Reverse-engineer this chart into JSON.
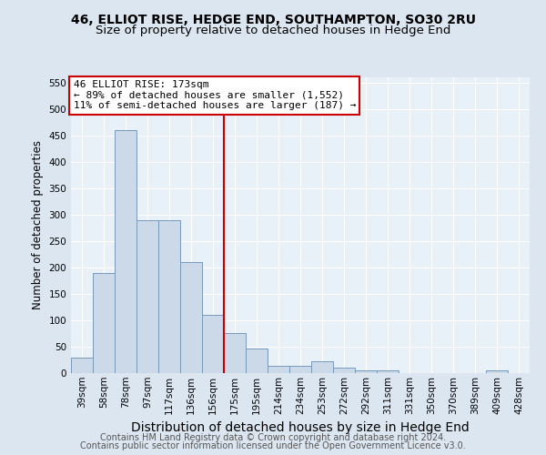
{
  "title": "46, ELLIOT RISE, HEDGE END, SOUTHAMPTON, SO30 2RU",
  "subtitle": "Size of property relative to detached houses in Hedge End",
  "xlabel": "Distribution of detached houses by size in Hedge End",
  "ylabel": "Number of detached properties",
  "categories": [
    "39sqm",
    "58sqm",
    "78sqm",
    "97sqm",
    "117sqm",
    "136sqm",
    "156sqm",
    "175sqm",
    "195sqm",
    "214sqm",
    "234sqm",
    "253sqm",
    "272sqm",
    "292sqm",
    "311sqm",
    "331sqm",
    "350sqm",
    "370sqm",
    "389sqm",
    "409sqm",
    "428sqm"
  ],
  "values": [
    30,
    190,
    460,
    290,
    290,
    210,
    110,
    75,
    47,
    14,
    14,
    22,
    10,
    6,
    5,
    0,
    0,
    0,
    0,
    5,
    0
  ],
  "bar_color": "#ccd9e8",
  "bar_edge_color": "#7799bb",
  "vline_x": 6.5,
  "vline_color": "#cc0000",
  "annotation_text": "46 ELLIOT RISE: 173sqm\n← 89% of detached houses are smaller (1,552)\n11% of semi-detached houses are larger (187) →",
  "annotation_box_color": "#ffffff",
  "annotation_box_edge_color": "#cc0000",
  "ylim": [
    0,
    560
  ],
  "yticks": [
    0,
    50,
    100,
    150,
    200,
    250,
    300,
    350,
    400,
    450,
    500,
    550
  ],
  "bg_color": "#dce6f0",
  "plot_bg_color": "#e8f0f8",
  "footer_line1": "Contains HM Land Registry data © Crown copyright and database right 2024.",
  "footer_line2": "Contains public sector information licensed under the Open Government Licence v3.0.",
  "title_fontsize": 10,
  "subtitle_fontsize": 9.5,
  "xlabel_fontsize": 10,
  "ylabel_fontsize": 8.5,
  "tick_fontsize": 7.5,
  "footer_fontsize": 7,
  "ann_fontsize": 8
}
